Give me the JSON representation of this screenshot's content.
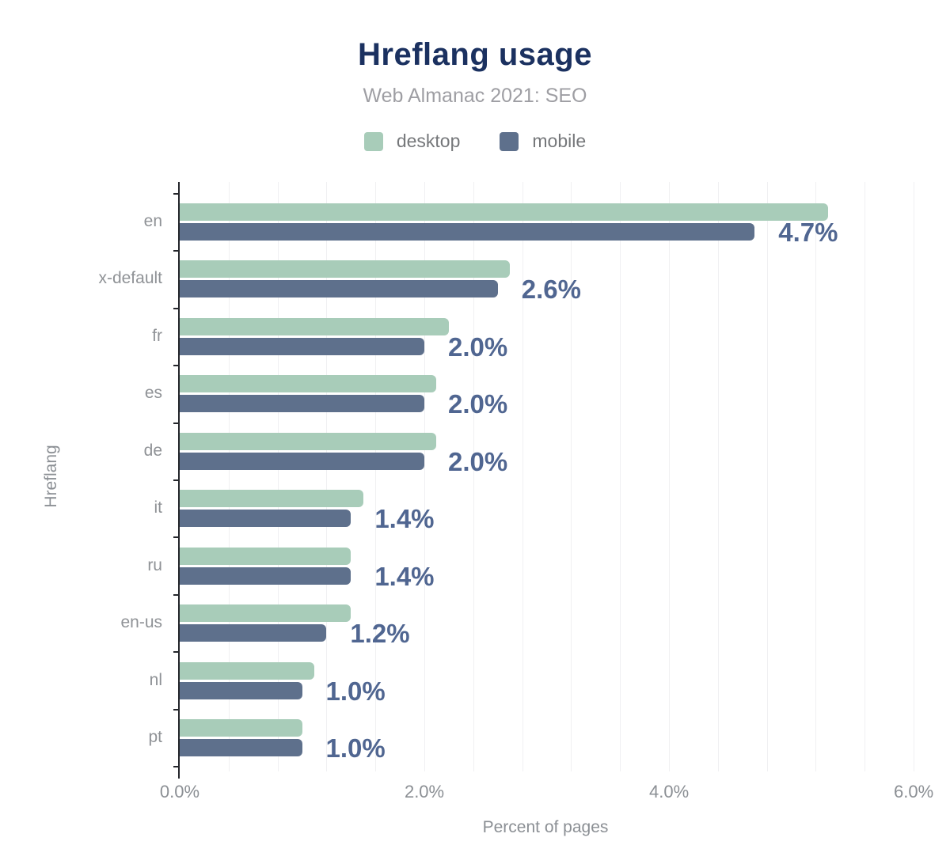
{
  "chart_data": {
    "type": "bar",
    "orientation": "horizontal",
    "title": "Hreflang usage",
    "subtitle": "Web Almanac 2021: SEO",
    "xlabel": "Percent of pages",
    "ylabel": "Hreflang",
    "categories": [
      "en",
      "x-default",
      "fr",
      "es",
      "de",
      "it",
      "ru",
      "en-us",
      "nl",
      "pt"
    ],
    "series": [
      {
        "name": "desktop",
        "color": "#a8ccb9",
        "values": [
          5.3,
          2.7,
          2.2,
          2.1,
          2.1,
          1.5,
          1.4,
          1.4,
          1.1,
          1.0
        ]
      },
      {
        "name": "mobile",
        "color": "#5e708c",
        "values": [
          4.7,
          2.6,
          2.0,
          2.0,
          2.0,
          1.4,
          1.4,
          1.2,
          1.0,
          1.0
        ],
        "data_labels": [
          "4.7%",
          "2.6%",
          "2.0%",
          "2.0%",
          "2.0%",
          "1.4%",
          "1.4%",
          "1.2%",
          "1.0%",
          "1.0%"
        ]
      }
    ],
    "data_label_series": "mobile",
    "x_ticks": [
      {
        "value": 0,
        "label": "0.0%"
      },
      {
        "value": 2,
        "label": "2.0%"
      },
      {
        "value": 4,
        "label": "4.0%"
      },
      {
        "value": 6,
        "label": "6.0%"
      }
    ],
    "xlim": [
      0,
      6.2
    ],
    "grid": true,
    "minor_gridline_step": 0.4,
    "legend_position": "top",
    "colors": {
      "title": "#1b3160",
      "subtitle": "#9e9ea3",
      "legend_text": "#75777a",
      "category_label": "#8f9296",
      "tick_label": "#8b8f94",
      "axis_title": "#8b8f94",
      "value_label": "#506691",
      "axis_line": "#24262b",
      "gridline": "#f0f0f2",
      "background": "#ffffff"
    }
  }
}
